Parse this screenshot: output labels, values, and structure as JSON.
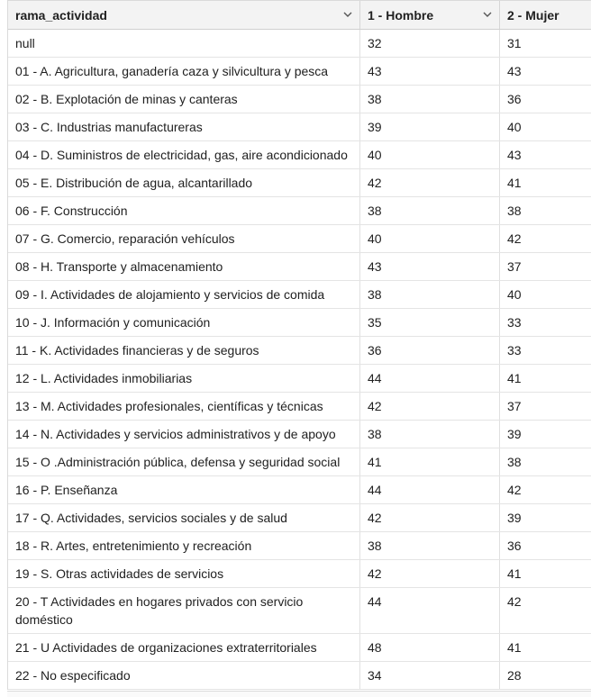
{
  "table": {
    "columns": [
      {
        "label": "rama_actividad"
      },
      {
        "label": "1 - Hombre"
      },
      {
        "label": "2 - Mujer"
      }
    ],
    "rows": [
      {
        "rama": "null",
        "hombre": "32",
        "mujer": "31"
      },
      {
        "rama": "01 - A. Agricultura, ganadería caza y silvicultura y pesca",
        "hombre": "43",
        "mujer": "43"
      },
      {
        "rama": "02 - B. Explotación de minas y canteras",
        "hombre": "38",
        "mujer": "36"
      },
      {
        "rama": "03 - C. Industrias manufactureras",
        "hombre": "39",
        "mujer": "40"
      },
      {
        "rama": "04 - D. Suministros de electricidad, gas, aire acondicionado",
        "hombre": "40",
        "mujer": "43"
      },
      {
        "rama": "05 - E. Distribución de agua, alcantarillado",
        "hombre": "42",
        "mujer": "41"
      },
      {
        "rama": "06 - F. Construcción",
        "hombre": "38",
        "mujer": "38"
      },
      {
        "rama": "07 - G. Comercio, reparación vehículos",
        "hombre": "40",
        "mujer": "42"
      },
      {
        "rama": "08 - H. Transporte y almacenamiento",
        "hombre": "43",
        "mujer": "37"
      },
      {
        "rama": "09 - I. Actividades de alojamiento y servicios de comida",
        "hombre": "38",
        "mujer": "40"
      },
      {
        "rama": "10 - J. Información y comunicación",
        "hombre": "35",
        "mujer": "33"
      },
      {
        "rama": "11 - K. Actividades financieras y de seguros",
        "hombre": "36",
        "mujer": "33"
      },
      {
        "rama": "12 - L. Actividades inmobiliarias",
        "hombre": "44",
        "mujer": "41"
      },
      {
        "rama": "13 - M. Actividades profesionales, científicas y técnicas",
        "hombre": "42",
        "mujer": "37"
      },
      {
        "rama": "14 - N. Actividades y servicios administrativos y de apoyo",
        "hombre": "38",
        "mujer": "39"
      },
      {
        "rama": "15 - O .Administración pública, defensa y seguridad social",
        "hombre": "41",
        "mujer": "38"
      },
      {
        "rama": "16 - P. Enseñanza",
        "hombre": "44",
        "mujer": "42"
      },
      {
        "rama": "17 - Q. Actividades, servicios sociales y de salud",
        "hombre": "42",
        "mujer": "39"
      },
      {
        "rama": "18 - R. Artes, entretenimiento y recreación",
        "hombre": "38",
        "mujer": "36"
      },
      {
        "rama": "19 - S. Otras actividades de servicios",
        "hombre": "42",
        "mujer": "41"
      },
      {
        "rama": "20 - T  Actividades en hogares privados con servicio doméstico",
        "hombre": "44",
        "mujer": "42"
      },
      {
        "rama": "21 - U  Actividades de organizaciones extraterritoriales",
        "hombre": "48",
        "mujer": "41"
      },
      {
        "rama": "22 - No especificado",
        "hombre": "34",
        "mujer": "28"
      }
    ]
  },
  "icons": {
    "sort": "chevron-down-icon"
  }
}
